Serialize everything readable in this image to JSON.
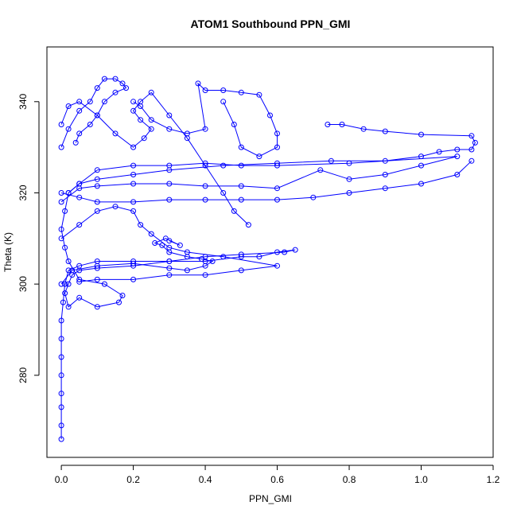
{
  "chart_data": {
    "type": "line",
    "title": "ATOM1 Southbound PPN_GMI",
    "xlabel": "PPN_GMI",
    "ylabel": "Theta (K)",
    "xlim": [
      -0.04,
      1.2
    ],
    "ylim": [
      262,
      352
    ],
    "x_ticks": [
      0.0,
      0.2,
      0.4,
      0.6,
      0.8,
      1.0,
      1.2
    ],
    "x_tick_labels": [
      "0.0",
      "0.2",
      "0.4",
      "0.6",
      "0.8",
      "1.0",
      "1.2"
    ],
    "y_ticks": [
      280,
      300,
      320,
      340
    ],
    "y_tick_labels": [
      "280",
      "300",
      "320",
      "340"
    ],
    "grid": false,
    "legend": "none",
    "marker": "open-circle",
    "color": "#0000ff",
    "series": [
      {
        "points": [
          [
            0.0,
            266
          ],
          [
            0.0,
            269
          ],
          [
            0.0,
            273
          ],
          [
            0.0,
            276
          ],
          [
            0.0,
            280
          ],
          [
            0.0,
            284
          ],
          [
            0.0,
            288
          ],
          [
            0.0,
            292
          ],
          [
            0.005,
            296
          ],
          [
            0.01,
            300
          ],
          [
            0.02,
            303
          ],
          [
            0.05,
            304
          ],
          [
            0.1,
            305
          ],
          [
            0.2,
            305
          ],
          [
            0.3,
            305
          ],
          [
            0.4,
            305
          ],
          [
            0.5,
            306
          ],
          [
            0.55,
            306
          ],
          [
            0.6,
            307
          ],
          [
            0.65,
            307.5
          ],
          [
            0.62,
            307
          ],
          [
            0.5,
            306.5
          ],
          [
            0.4,
            306
          ],
          [
            0.3,
            305
          ],
          [
            0.2,
            304
          ],
          [
            0.1,
            303.5
          ],
          [
            0.05,
            303
          ],
          [
            0.03,
            302
          ],
          [
            0.02,
            300
          ],
          [
            0.01,
            298
          ],
          [
            0.02,
            295
          ],
          [
            0.05,
            297
          ],
          [
            0.1,
            295
          ],
          [
            0.16,
            296
          ],
          [
            0.17,
            297.5
          ],
          [
            0.12,
            300
          ],
          [
            0.05,
            301
          ],
          [
            0.02,
            305
          ],
          [
            0.01,
            308
          ],
          [
            0.0,
            312
          ],
          [
            0.01,
            316
          ],
          [
            0.02,
            320
          ],
          [
            0.05,
            322
          ],
          [
            0.1,
            323
          ],
          [
            0.2,
            324
          ],
          [
            0.3,
            325
          ],
          [
            0.45,
            326
          ],
          [
            0.6,
            326.5
          ],
          [
            0.75,
            327
          ],
          [
            0.9,
            327
          ],
          [
            1.0,
            328
          ],
          [
            1.05,
            329
          ],
          [
            1.1,
            329.5
          ],
          [
            1.14,
            329.5
          ],
          [
            1.15,
            331
          ],
          [
            1.14,
            332.5
          ],
          [
            1.0,
            332.8
          ],
          [
            0.9,
            333.5
          ],
          [
            0.84,
            334
          ],
          [
            0.78,
            335
          ],
          [
            0.74,
            335
          ]
        ]
      },
      {
        "points": [
          [
            0.0,
            300
          ],
          [
            0.03,
            303
          ],
          [
            0.1,
            304
          ],
          [
            0.2,
            304.5
          ],
          [
            0.3,
            303.5
          ],
          [
            0.35,
            303
          ],
          [
            0.4,
            304
          ],
          [
            0.42,
            305
          ],
          [
            0.39,
            305.5
          ],
          [
            0.35,
            306
          ],
          [
            0.3,
            307
          ],
          [
            0.28,
            308.5
          ],
          [
            0.26,
            309
          ],
          [
            0.29,
            310
          ],
          [
            0.33,
            308.5
          ],
          [
            0.3,
            309.5
          ]
        ]
      },
      {
        "points": [
          [
            0.0,
            318
          ],
          [
            0.05,
            321
          ],
          [
            0.1,
            321.5
          ],
          [
            0.2,
            322
          ],
          [
            0.3,
            322
          ],
          [
            0.4,
            321.5
          ],
          [
            0.5,
            321.5
          ],
          [
            0.6,
            321
          ],
          [
            0.72,
            325
          ],
          [
            0.8,
            323
          ],
          [
            0.9,
            324
          ],
          [
            1.0,
            326
          ],
          [
            1.1,
            328
          ],
          [
            0.8,
            326.5
          ],
          [
            0.6,
            326
          ],
          [
            0.5,
            326
          ],
          [
            0.4,
            326.5
          ],
          [
            0.3,
            326
          ],
          [
            0.2,
            326
          ],
          [
            0.1,
            325
          ],
          [
            0.05,
            322
          ],
          [
            0.02,
            320
          ]
        ]
      },
      {
        "points": [
          [
            0.0,
            310
          ],
          [
            0.05,
            313
          ],
          [
            0.1,
            316
          ],
          [
            0.15,
            317
          ],
          [
            0.2,
            316
          ],
          [
            0.22,
            313
          ],
          [
            0.25,
            311
          ],
          [
            0.3,
            308
          ],
          [
            0.35,
            307
          ],
          [
            0.45,
            306
          ],
          [
            0.6,
            304
          ],
          [
            0.5,
            303
          ],
          [
            0.4,
            302
          ],
          [
            0.3,
            302
          ],
          [
            0.2,
            301
          ],
          [
            0.1,
            301
          ],
          [
            0.05,
            300.5
          ]
        ]
      },
      {
        "points": [
          [
            0.0,
            330
          ],
          [
            0.02,
            334
          ],
          [
            0.05,
            338
          ],
          [
            0.08,
            340
          ],
          [
            0.1,
            343
          ],
          [
            0.12,
            345
          ],
          [
            0.15,
            345
          ],
          [
            0.17,
            344
          ],
          [
            0.18,
            343
          ],
          [
            0.15,
            342
          ],
          [
            0.12,
            340
          ],
          [
            0.1,
            337
          ],
          [
            0.08,
            335
          ],
          [
            0.05,
            333
          ],
          [
            0.04,
            331
          ]
        ]
      },
      {
        "points": [
          [
            0.0,
            335
          ],
          [
            0.02,
            339
          ],
          [
            0.05,
            340
          ],
          [
            0.1,
            337
          ],
          [
            0.15,
            333
          ],
          [
            0.2,
            330
          ],
          [
            0.23,
            332
          ],
          [
            0.25,
            334
          ],
          [
            0.22,
            336
          ],
          [
            0.2,
            338
          ],
          [
            0.22,
            340
          ],
          [
            0.25,
            342
          ],
          [
            0.3,
            337
          ],
          [
            0.35,
            332
          ],
          [
            0.4,
            326
          ],
          [
            0.45,
            320
          ],
          [
            0.48,
            316
          ],
          [
            0.52,
            313
          ]
        ]
      },
      {
        "points": [
          [
            0.2,
            340
          ],
          [
            0.22,
            339
          ],
          [
            0.25,
            336
          ],
          [
            0.3,
            334
          ],
          [
            0.35,
            333
          ],
          [
            0.4,
            334
          ],
          [
            0.38,
            344
          ],
          [
            0.4,
            342.5
          ],
          [
            0.45,
            342.5
          ],
          [
            0.5,
            342
          ],
          [
            0.55,
            341.5
          ],
          [
            0.58,
            337
          ],
          [
            0.6,
            333
          ],
          [
            0.6,
            330
          ],
          [
            0.55,
            328
          ],
          [
            0.5,
            330
          ],
          [
            0.48,
            335
          ],
          [
            0.45,
            340
          ]
        ]
      },
      {
        "points": [
          [
            0.0,
            320
          ],
          [
            0.05,
            319
          ],
          [
            0.1,
            318
          ],
          [
            0.2,
            318
          ],
          [
            0.3,
            318.5
          ],
          [
            0.4,
            318.5
          ],
          [
            0.5,
            318.5
          ],
          [
            0.6,
            318.5
          ],
          [
            0.7,
            319
          ],
          [
            0.8,
            320
          ],
          [
            0.9,
            321
          ],
          [
            1.0,
            322
          ],
          [
            1.1,
            324
          ],
          [
            1.14,
            327
          ]
        ]
      }
    ]
  }
}
